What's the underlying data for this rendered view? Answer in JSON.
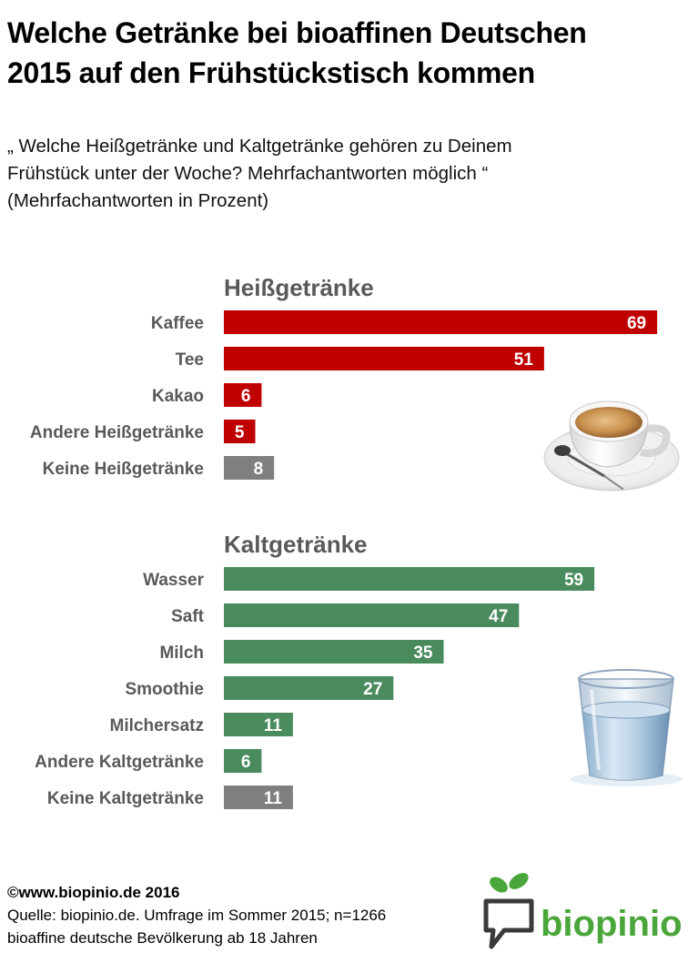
{
  "title_line1": "Welche Getränke bei bioaffinen Deutschen",
  "title_line2": "2015 auf den Frühstückstisch kommen",
  "question_line1": "„ Welche Heißgetränke und Kaltgetränke gehören zu Deinem",
  "question_line2": "Frühstück unter der Woche? Mehrfachantworten möglich “",
  "question_line3": "(Mehrfachantworten in Prozent)",
  "colors": {
    "hot": "#c00000",
    "cold": "#4a8b5e",
    "none": "#7f7f7f",
    "heading": "#595959"
  },
  "chart_data": {
    "type": "bar",
    "orientation": "horizontal",
    "unit": "Prozent",
    "xlim": [
      0,
      70
    ],
    "grid": false,
    "groups": [
      {
        "name": "Heißgetränke",
        "categories": [
          "Kaffee",
          "Tee",
          "Kakao",
          "Andere Heißgetränke",
          "Keine Heißgetränke"
        ],
        "values": [
          69,
          51,
          6,
          5,
          8
        ],
        "colors": [
          "#c00000",
          "#c00000",
          "#c00000",
          "#c00000",
          "#7f7f7f"
        ]
      },
      {
        "name": "Kaltgetränke",
        "categories": [
          "Wasser",
          "Saft",
          "Milch",
          "Smoothie",
          "Milchersatz",
          "Andere Kaltgetränke",
          "Keine Kaltgetränke"
        ],
        "values": [
          59,
          47,
          35,
          27,
          11,
          6,
          11
        ],
        "colors": [
          "#4a8b5e",
          "#4a8b5e",
          "#4a8b5e",
          "#4a8b5e",
          "#4a8b5e",
          "#4a8b5e",
          "#7f7f7f"
        ]
      }
    ]
  },
  "footer": {
    "copyright": "©www.biopinio.de 2016",
    "source": "Quelle: biopinio.de. Umfrage im Sommer 2015; n=1266",
    "population": "bioaffine deutsche Bevölkerung  ab 18 Jahren"
  },
  "logo_text": "biopinio",
  "icons": {
    "coffee": "coffee-cup-icon",
    "water": "water-glass-icon",
    "logo": "biopinio-logo"
  }
}
